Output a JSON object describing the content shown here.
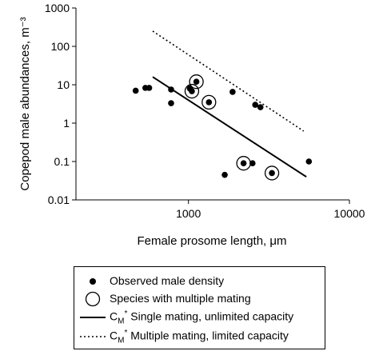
{
  "chart_data": {
    "type": "scatter",
    "title": "",
    "xlabel": "Female prosome length, μm",
    "ylabel": "Copepod male abundances, m⁻³",
    "x_scale": "log",
    "y_scale": "log",
    "xlim": [
      200,
      10000
    ],
    "ylim": [
      0.01,
      1000
    ],
    "x_tick_labels": [
      "1000",
      "10000"
    ],
    "x_ticks": [
      1000,
      10000
    ],
    "y_tick_labels": [
      "0.01",
      "0.1",
      "1",
      "10",
      "100",
      "1000"
    ],
    "y_ticks": [
      0.01,
      0.1,
      1,
      10,
      100,
      1000
    ],
    "grid": false,
    "legend_placement": "below plot",
    "series": [
      {
        "name": "Observed male density",
        "marker": "filled-circle",
        "x": [
          470,
          540,
          570,
          780,
          780,
          1020,
          1050,
          1120,
          1340,
          1680,
          1880,
          2200,
          2500,
          2600,
          2800,
          3300,
          5600
        ],
        "y": [
          7.0,
          8.3,
          8.3,
          7.5,
          3.3,
          8.0,
          6.8,
          12.0,
          3.5,
          0.045,
          6.5,
          0.09,
          0.09,
          3.0,
          2.6,
          0.05,
          0.1
        ]
      },
      {
        "name": "Species with multiple mating",
        "marker": "open-circle",
        "x": [
          1050,
          1120,
          1340,
          2200,
          3300
        ],
        "y": [
          6.8,
          12.0,
          3.5,
          0.09,
          0.05
        ]
      },
      {
        "name": "Single mating, unlimited capacity",
        "line": "solid",
        "x": [
          600,
          5400
        ],
        "y": [
          16.0,
          0.04
        ]
      },
      {
        "name": "Multiple mating, limited capacity",
        "line": "dotted",
        "x": [
          600,
          5200
        ],
        "y": [
          250.0,
          0.62
        ]
      }
    ]
  },
  "legend": {
    "items": [
      {
        "label": "Observed male density"
      },
      {
        "label": "Species with multiple mating"
      },
      {
        "prefix": "C",
        "sub": "M",
        "sup": "*",
        "label": " Single mating, unlimited capacity"
      },
      {
        "prefix": "C",
        "sub": "M",
        "sup": "*",
        "label": " Multiple mating, limited capacity"
      }
    ]
  },
  "colors": {
    "ink": "#000000",
    "background": "#ffffff"
  }
}
